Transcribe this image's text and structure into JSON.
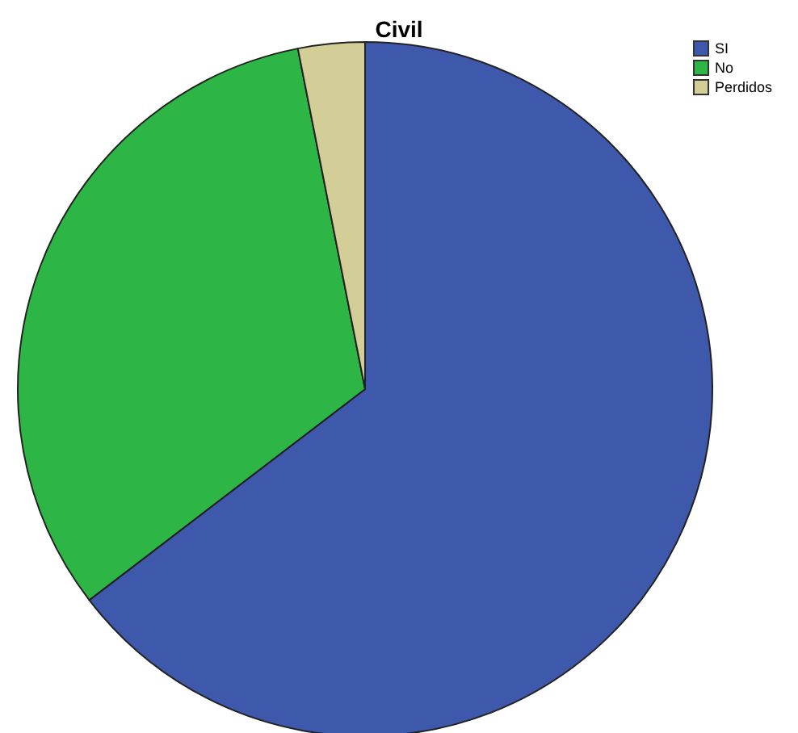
{
  "chart_data": {
    "type": "pie",
    "title": "Civil",
    "categories": [
      "SI",
      "No",
      "Perdidos"
    ],
    "values": [
      64.6,
      32.3,
      3.1
    ],
    "colors": [
      "#3e58ab",
      "#2db646",
      "#d3ce97"
    ],
    "legend": "top right"
  }
}
